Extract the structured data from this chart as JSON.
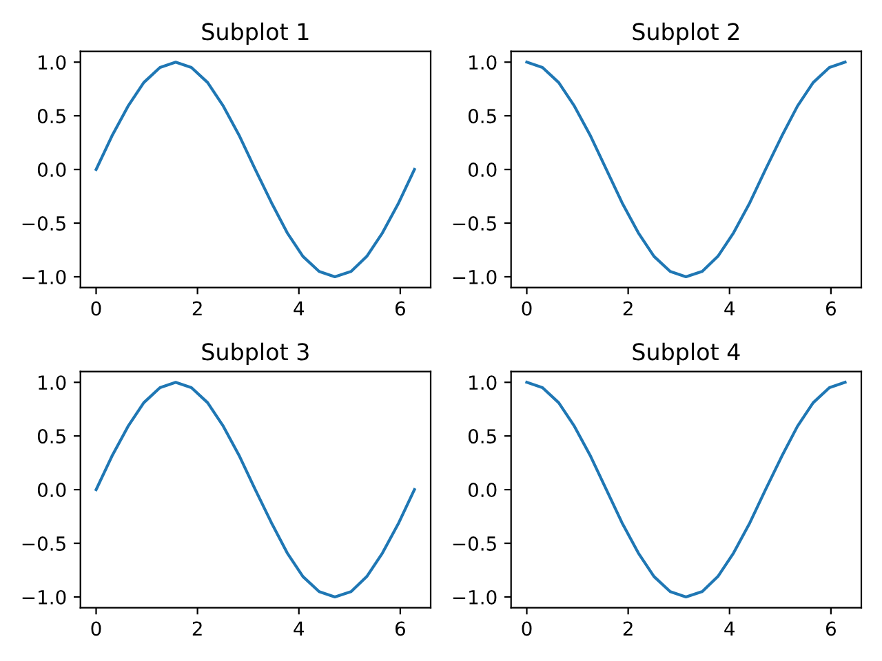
{
  "chart_data": [
    {
      "type": "line",
      "title": "Subplot 1",
      "x": [
        0,
        0.31,
        0.63,
        0.94,
        1.26,
        1.57,
        1.88,
        2.2,
        2.51,
        2.83,
        3.14,
        3.46,
        3.77,
        4.08,
        4.4,
        4.71,
        5.03,
        5.34,
        5.65,
        5.97,
        6.28
      ],
      "series": [
        {
          "color": "#1f77b4",
          "values": [
            0,
            0.31,
            0.59,
            0.81,
            0.95,
            1.0,
            0.95,
            0.81,
            0.59,
            0.31,
            0,
            -0.31,
            -0.59,
            -0.81,
            -0.95,
            -1.0,
            -0.95,
            -0.81,
            -0.59,
            -0.31,
            0
          ]
        }
      ],
      "xlim": [
        -0.31,
        6.6
      ],
      "ylim": [
        -1.1,
        1.1
      ],
      "xticks": [
        0,
        2,
        4,
        6
      ],
      "yticks": [
        {
          "value": -1,
          "label": "−1.0"
        },
        {
          "value": -0.5,
          "label": "−0.5"
        },
        {
          "value": 0,
          "label": "0.0"
        },
        {
          "value": 0.5,
          "label": "0.5"
        },
        {
          "value": 1,
          "label": "1.0"
        }
      ],
      "grid": false,
      "legend": false
    },
    {
      "type": "line",
      "title": "Subplot 2",
      "x": [
        0,
        0.31,
        0.63,
        0.94,
        1.26,
        1.57,
        1.88,
        2.2,
        2.51,
        2.83,
        3.14,
        3.46,
        3.77,
        4.08,
        4.4,
        4.71,
        5.03,
        5.34,
        5.65,
        5.97,
        6.28
      ],
      "series": [
        {
          "color": "#1f77b4",
          "values": [
            1.0,
            0.95,
            0.81,
            0.59,
            0.31,
            0,
            -0.31,
            -0.59,
            -0.81,
            -0.95,
            -1.0,
            -0.95,
            -0.81,
            -0.59,
            -0.31,
            0,
            0.31,
            0.59,
            0.81,
            0.95,
            1.0
          ]
        }
      ],
      "xlim": [
        -0.31,
        6.6
      ],
      "ylim": [
        -1.1,
        1.1
      ],
      "xticks": [
        0,
        2,
        4,
        6
      ],
      "yticks": [
        {
          "value": -1,
          "label": "−1.0"
        },
        {
          "value": -0.5,
          "label": "−0.5"
        },
        {
          "value": 0,
          "label": "0.0"
        },
        {
          "value": 0.5,
          "label": "0.5"
        },
        {
          "value": 1,
          "label": "1.0"
        }
      ],
      "grid": false,
      "legend": false
    },
    {
      "type": "line",
      "title": "Subplot 3",
      "x": [
        0,
        0.31,
        0.63,
        0.94,
        1.26,
        1.57,
        1.88,
        2.2,
        2.51,
        2.83,
        3.14,
        3.46,
        3.77,
        4.08,
        4.4,
        4.71,
        5.03,
        5.34,
        5.65,
        5.97,
        6.28
      ],
      "series": [
        {
          "color": "#1f77b4",
          "values": [
            0,
            0.31,
            0.59,
            0.81,
            0.95,
            1.0,
            0.95,
            0.81,
            0.59,
            0.31,
            0,
            -0.31,
            -0.59,
            -0.81,
            -0.95,
            -1.0,
            -0.95,
            -0.81,
            -0.59,
            -0.31,
            0
          ]
        }
      ],
      "xlim": [
        -0.31,
        6.6
      ],
      "ylim": [
        -1.1,
        1.1
      ],
      "xticks": [
        0,
        2,
        4,
        6
      ],
      "yticks": [
        {
          "value": -1,
          "label": "−1.0"
        },
        {
          "value": -0.5,
          "label": "−0.5"
        },
        {
          "value": 0,
          "label": "0.0"
        },
        {
          "value": 0.5,
          "label": "0.5"
        },
        {
          "value": 1,
          "label": "1.0"
        }
      ],
      "grid": false,
      "legend": false
    },
    {
      "type": "line",
      "title": "Subplot 4",
      "x": [
        0,
        0.31,
        0.63,
        0.94,
        1.26,
        1.57,
        1.88,
        2.2,
        2.51,
        2.83,
        3.14,
        3.46,
        3.77,
        4.08,
        4.4,
        4.71,
        5.03,
        5.34,
        5.65,
        5.97,
        6.28
      ],
      "series": [
        {
          "color": "#1f77b4",
          "values": [
            1.0,
            0.95,
            0.81,
            0.59,
            0.31,
            0,
            -0.31,
            -0.59,
            -0.81,
            -0.95,
            -1.0,
            -0.95,
            -0.81,
            -0.59,
            -0.31,
            0,
            0.31,
            0.59,
            0.81,
            0.95,
            1.0
          ]
        }
      ],
      "xlim": [
        -0.31,
        6.6
      ],
      "ylim": [
        -1.1,
        1.1
      ],
      "xticks": [
        0,
        2,
        4,
        6
      ],
      "yticks": [
        {
          "value": -1,
          "label": "−1.0"
        },
        {
          "value": -0.5,
          "label": "−0.5"
        },
        {
          "value": 0,
          "label": "0.0"
        },
        {
          "value": 0.5,
          "label": "0.5"
        },
        {
          "value": 1,
          "label": "1.0"
        }
      ],
      "grid": false,
      "legend": false
    }
  ]
}
